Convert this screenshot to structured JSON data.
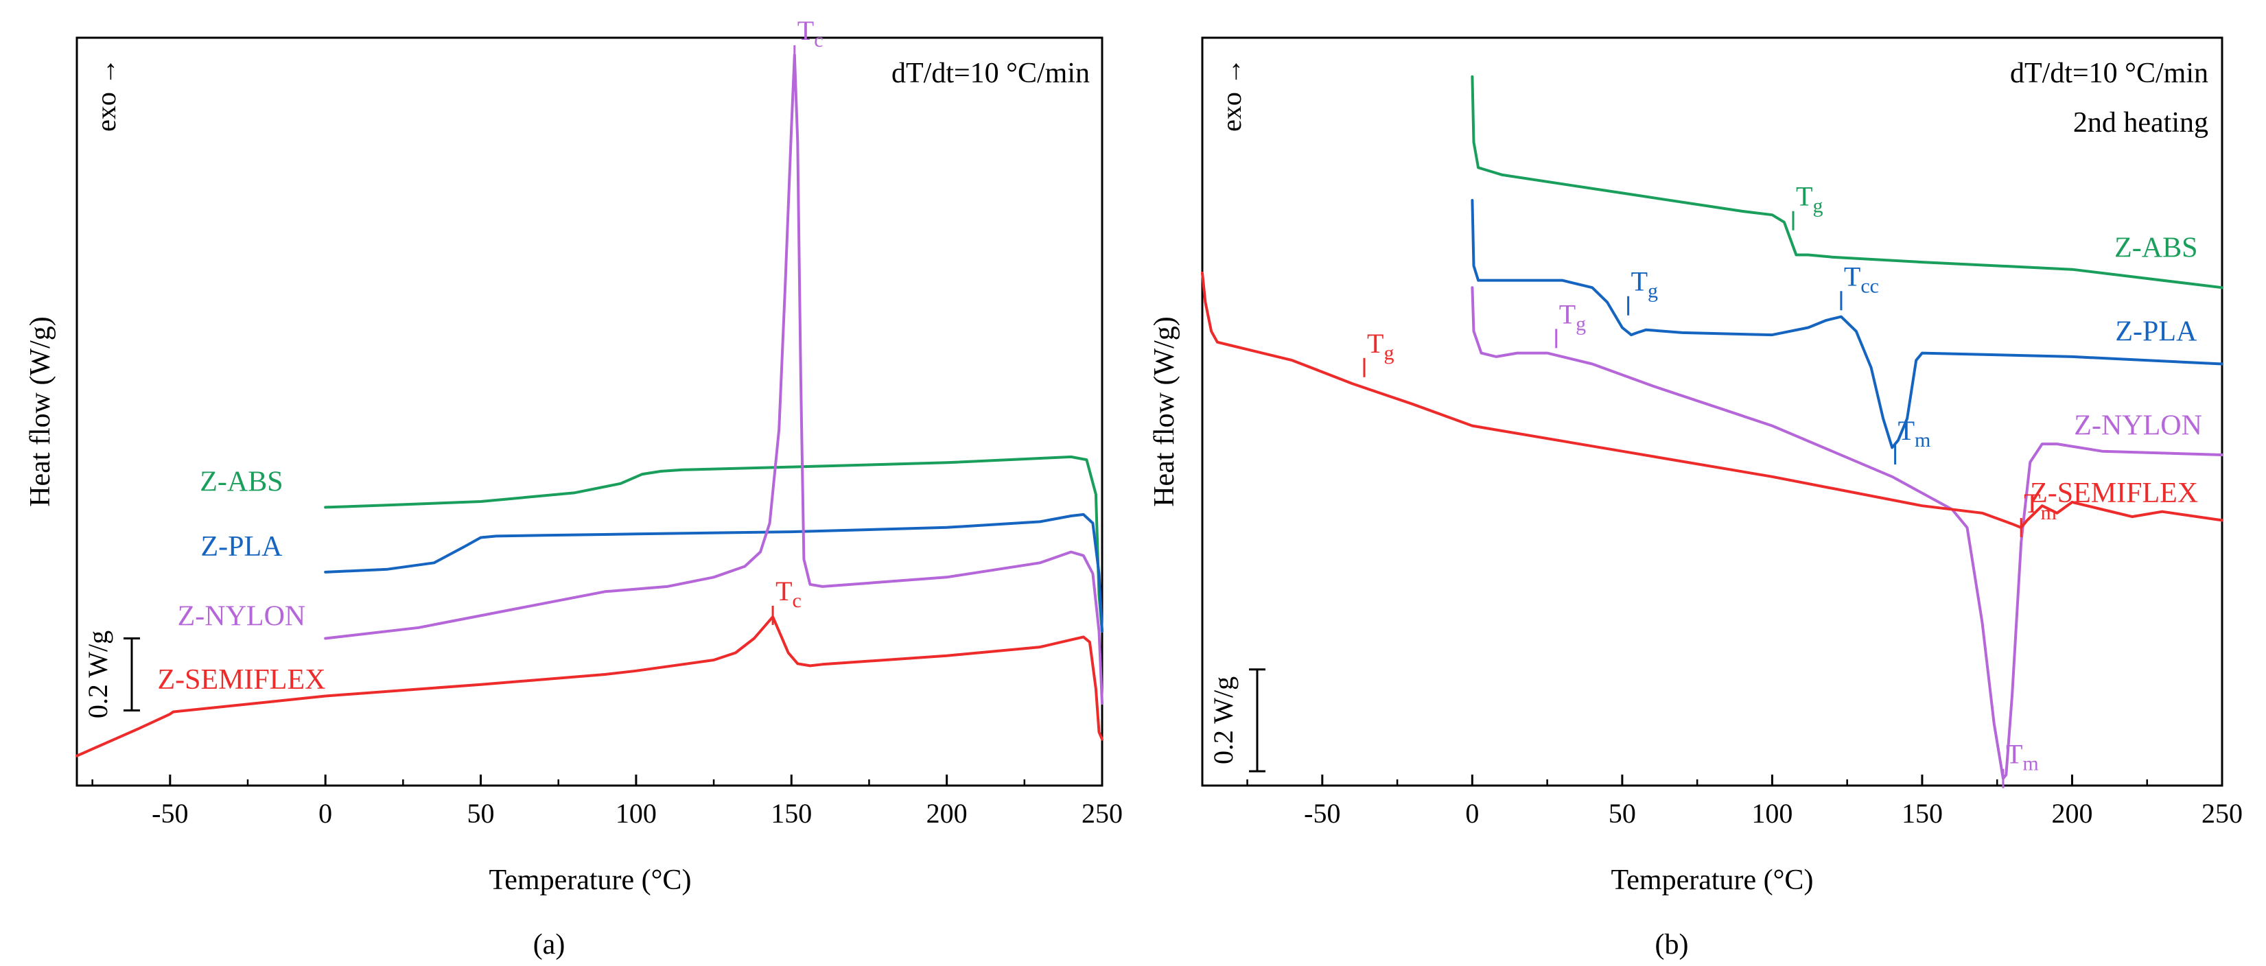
{
  "colors": {
    "Z-ABS": "#1a9e5c",
    "Z-PLA": "#1565c0",
    "Z-NYLON": "#b566d8",
    "Z-SEMIFLEX": "#ee2b2b",
    "axis": "#000000"
  },
  "chart_data": [
    {
      "type": "line",
      "panel_label": "(a)",
      "title": "",
      "condition_text": "dT/dt=10 °C/min",
      "xlabel": "Temperature (°C)",
      "ylabel": "Heat flow (W/g)",
      "exo_label": "exo →",
      "xlim": [
        -80,
        250
      ],
      "ylim": [
        0,
        1
      ],
      "xticks": [
        -50,
        0,
        50,
        100,
        150,
        200,
        250
      ],
      "xtick_labels": [
        "-50",
        "0",
        "50",
        "100",
        "150",
        "200",
        "250"
      ],
      "scale_bar": {
        "label": "0.2 W/g",
        "from": 0.09,
        "to": 0.19
      },
      "series": [
        {
          "name": "Z-ABS",
          "x": [
            0,
            20,
            50,
            80,
            95,
            102,
            108,
            115,
            150,
            200,
            230,
            240,
            245,
            248,
            249,
            250
          ],
          "y": [
            0.372,
            0.375,
            0.38,
            0.392,
            0.405,
            0.418,
            0.422,
            0.424,
            0.428,
            0.434,
            0.44,
            0.442,
            0.438,
            0.39,
            0.25,
            0.2
          ]
        },
        {
          "name": "Z-PLA",
          "x": [
            0,
            20,
            35,
            45,
            50,
            55,
            70,
            100,
            150,
            200,
            230,
            240,
            244,
            247,
            249,
            250
          ],
          "y": [
            0.282,
            0.286,
            0.295,
            0.318,
            0.33,
            0.332,
            0.333,
            0.335,
            0.338,
            0.344,
            0.352,
            0.36,
            0.362,
            0.35,
            0.28,
            0.2
          ]
        },
        {
          "name": "Z-NYLON",
          "x": [
            0,
            30,
            60,
            90,
            110,
            125,
            135,
            140,
            143,
            146,
            148,
            150,
            151,
            152,
            153,
            154,
            156,
            160,
            200,
            230,
            240,
            244,
            247,
            249,
            250
          ],
          "y": [
            0.19,
            0.205,
            0.23,
            0.255,
            0.262,
            0.275,
            0.29,
            0.31,
            0.35,
            0.48,
            0.68,
            0.9,
            1.0,
            0.88,
            0.55,
            0.3,
            0.265,
            0.262,
            0.275,
            0.295,
            0.31,
            0.305,
            0.28,
            0.2,
            0.1
          ]
        },
        {
          "name": "Z-SEMIFLEX",
          "x": [
            -80,
            -60,
            -50,
            -49,
            0,
            50,
            90,
            100,
            125,
            132,
            138,
            142,
            144,
            146,
            149,
            152,
            156,
            160,
            200,
            230,
            240,
            244,
            246,
            248,
            249,
            250
          ],
          "y": [
            0.027,
            0.065,
            0.085,
            0.088,
            0.11,
            0.126,
            0.14,
            0.145,
            0.16,
            0.17,
            0.19,
            0.21,
            0.22,
            0.2,
            0.17,
            0.155,
            0.152,
            0.154,
            0.166,
            0.178,
            0.188,
            0.192,
            0.185,
            0.12,
            0.06,
            0.05
          ]
        }
      ],
      "series_labels": [
        {
          "name": "Z-ABS",
          "text": "Z-ABS",
          "x": -27,
          "y": 0.395
        },
        {
          "name": "Z-PLA",
          "text": "Z-PLA",
          "x": -27,
          "y": 0.305
        },
        {
          "name": "Z-NYLON",
          "text": "Z-NYLON",
          "x": -27,
          "y": 0.208
        },
        {
          "name": "Z-SEMIFLEX",
          "text": "Z-SEMIFLEX",
          "x": -27,
          "y": 0.12
        }
      ],
      "annotations": [
        {
          "series": "Z-NYLON",
          "main": "T",
          "sub": "c",
          "x": 151,
          "y": 1.0
        },
        {
          "series": "Z-SEMIFLEX",
          "main": "T",
          "sub": "c",
          "x": 144,
          "y": 0.222
        }
      ]
    },
    {
      "type": "line",
      "panel_label": "(b)",
      "title": "",
      "condition_text": "dT/dt=10 °C/min",
      "condition_text_2": "2nd heating",
      "xlabel": "Temperature (°C)",
      "ylabel": "Heat flow (W/g)",
      "exo_label": "exo →",
      "xlim": [
        -90,
        250
      ],
      "ylim": [
        0,
        1
      ],
      "xticks": [
        -50,
        0,
        50,
        100,
        150,
        200,
        250
      ],
      "xtick_labels": [
        "-50",
        "0",
        "50",
        "100",
        "150",
        "200",
        "250"
      ],
      "scale_bar": {
        "label": "0.2 W/g",
        "from": 0.015,
        "to": 0.155
      },
      "series": [
        {
          "name": "Z-ABS",
          "x": [
            0,
            0.5,
            2,
            10,
            50,
            90,
            100,
            104,
            108,
            112,
            120,
            150,
            200,
            250
          ],
          "y": [
            0.97,
            0.88,
            0.845,
            0.835,
            0.81,
            0.785,
            0.78,
            0.77,
            0.725,
            0.725,
            0.722,
            0.715,
            0.705,
            0.68
          ]
        },
        {
          "name": "Z-PLA",
          "x": [
            0,
            0.5,
            2,
            10,
            30,
            40,
            45,
            50,
            53,
            55,
            58,
            70,
            100,
            112,
            118,
            123,
            128,
            133,
            137,
            140,
            142,
            145,
            148,
            150,
            200,
            250
          ],
          "y": [
            0.8,
            0.71,
            0.69,
            0.69,
            0.69,
            0.68,
            0.66,
            0.625,
            0.615,
            0.618,
            0.622,
            0.618,
            0.615,
            0.625,
            0.635,
            0.64,
            0.62,
            0.57,
            0.5,
            0.46,
            0.47,
            0.5,
            0.58,
            0.59,
            0.585,
            0.575
          ]
        },
        {
          "name": "Z-NYLON",
          "x": [
            0,
            0.5,
            3,
            8,
            15,
            25,
            40,
            60,
            100,
            140,
            160,
            165,
            170,
            174,
            176,
            177,
            178,
            180,
            183,
            186,
            190,
            195,
            210,
            250
          ],
          "y": [
            0.68,
            0.62,
            0.59,
            0.585,
            0.59,
            0.59,
            0.575,
            0.545,
            0.49,
            0.42,
            0.375,
            0.35,
            0.22,
            0.08,
            0.03,
            0.005,
            0.01,
            0.12,
            0.33,
            0.44,
            0.465,
            0.465,
            0.455,
            0.45
          ]
        },
        {
          "name": "Z-SEMIFLEX",
          "x": [
            -90,
            -89,
            -87,
            -85,
            -80,
            -60,
            -40,
            -20,
            0,
            50,
            100,
            150,
            170,
            180,
            183,
            185,
            190,
            195,
            200,
            210,
            220,
            230,
            250
          ],
          "y": [
            0.7,
            0.66,
            0.62,
            0.605,
            0.6,
            0.58,
            0.548,
            0.52,
            0.49,
            0.455,
            0.42,
            0.38,
            0.37,
            0.355,
            0.35,
            0.36,
            0.38,
            0.37,
            0.385,
            0.375,
            0.365,
            0.372,
            0.36
          ]
        }
      ],
      "series_labels": [
        {
          "name": "Z-ABS",
          "text": "Z-ABS",
          "x": 228,
          "y": 0.722
        },
        {
          "name": "Z-PLA",
          "text": "Z-PLA",
          "x": 228,
          "y": 0.607
        },
        {
          "name": "Z-NYLON",
          "text": "Z-NYLON",
          "x": 222,
          "y": 0.478
        },
        {
          "name": "Z-SEMIFLEX",
          "text": "Z-SEMIFLEX",
          "x": 214,
          "y": 0.385
        }
      ],
      "annotations": [
        {
          "series": "Z-ABS",
          "main": "T",
          "sub": "g",
          "x": 107,
          "y": 0.772
        },
        {
          "series": "Z-PLA",
          "main": "T",
          "sub": "g",
          "x": 52,
          "y": 0.655
        },
        {
          "series": "Z-PLA",
          "main": "T",
          "sub": "cc",
          "x": 123,
          "y": 0.662
        },
        {
          "series": "Z-PLA",
          "main": "T",
          "sub": "m",
          "x": 141,
          "y": 0.45
        },
        {
          "series": "Z-NYLON",
          "main": "T",
          "sub": "g",
          "x": 28,
          "y": 0.61
        },
        {
          "series": "Z-NYLON",
          "main": "T",
          "sub": "m",
          "x": 177,
          "y": 0.005
        },
        {
          "series": "Z-SEMIFLEX",
          "main": "T",
          "sub": "g",
          "x": -36,
          "y": 0.57
        },
        {
          "series": "Z-SEMIFLEX",
          "main": "T",
          "sub": "m",
          "x": 183,
          "y": 0.35
        }
      ]
    }
  ]
}
